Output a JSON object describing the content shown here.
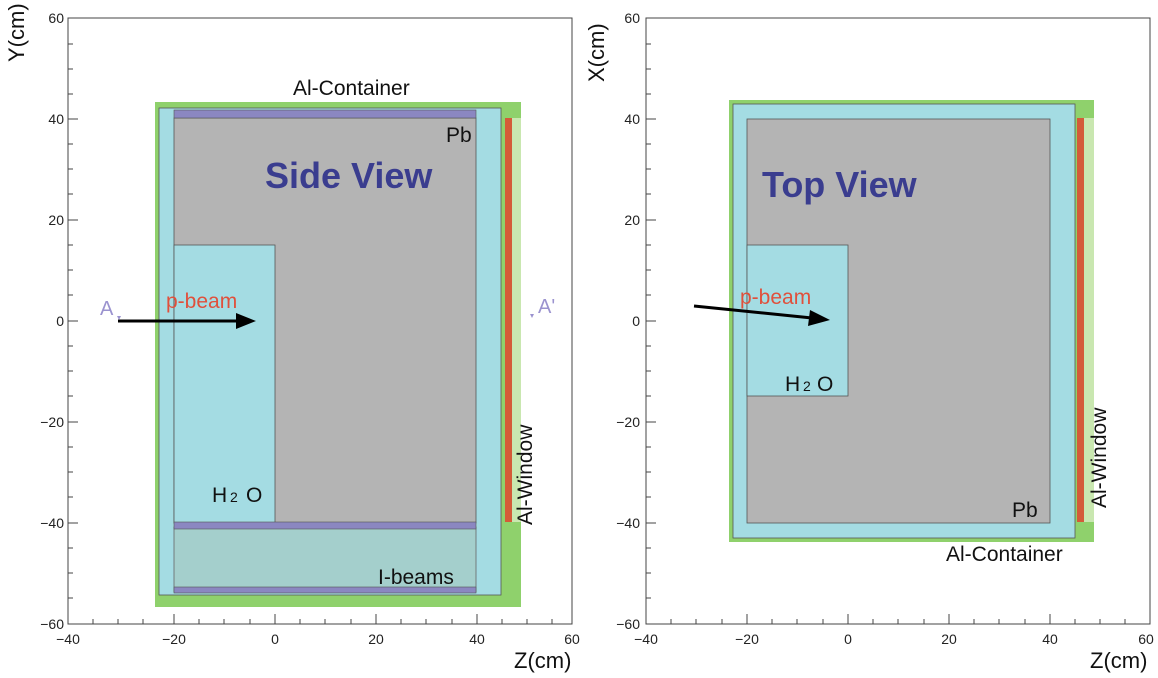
{
  "colors": {
    "container": "#8fd16c",
    "water": "#a4dce3",
    "lead": "#b4b4b4",
    "ibeam": "#8b87c1",
    "ibeam_region": "#a4cfcc",
    "window_red": "#d45b38",
    "window_light": "#c9e7b0",
    "title": "#3a3d8f",
    "beam_label": "#e0503c",
    "plane_marker": "#9b93cf"
  },
  "axes_common": {
    "xlim": [
      -40,
      60
    ],
    "ylim": [
      -60,
      60
    ],
    "x_ticks": [
      "−40",
      "−20",
      "0",
      "20",
      "40",
      "60"
    ],
    "y_ticks": [
      "60",
      "40",
      "20",
      "0",
      "−20",
      "−40",
      "−60"
    ]
  },
  "panels": [
    {
      "id": "side",
      "title": "Side View",
      "xlabel": "Z(cm)",
      "ylabel": "Y(cm)",
      "container_label": "Al-Container",
      "lead_label": "Pb",
      "water_label_main": "H",
      "water_label_sub": "2",
      "water_label_tail": "O",
      "beam_label": "p-beam",
      "window_label": "Al-Window",
      "ibeams_label": "I-beams",
      "plane_start": "A",
      "plane_end": "A'"
    },
    {
      "id": "top",
      "title": "Top View",
      "xlabel": "Z(cm)",
      "ylabel": "X(cm)",
      "container_label": "Al-Container",
      "lead_label": "Pb",
      "water_label_main": "H",
      "water_label_sub": "2",
      "water_label_tail": "O",
      "beam_label": "p-beam",
      "window_label": "Al-Window"
    }
  ]
}
